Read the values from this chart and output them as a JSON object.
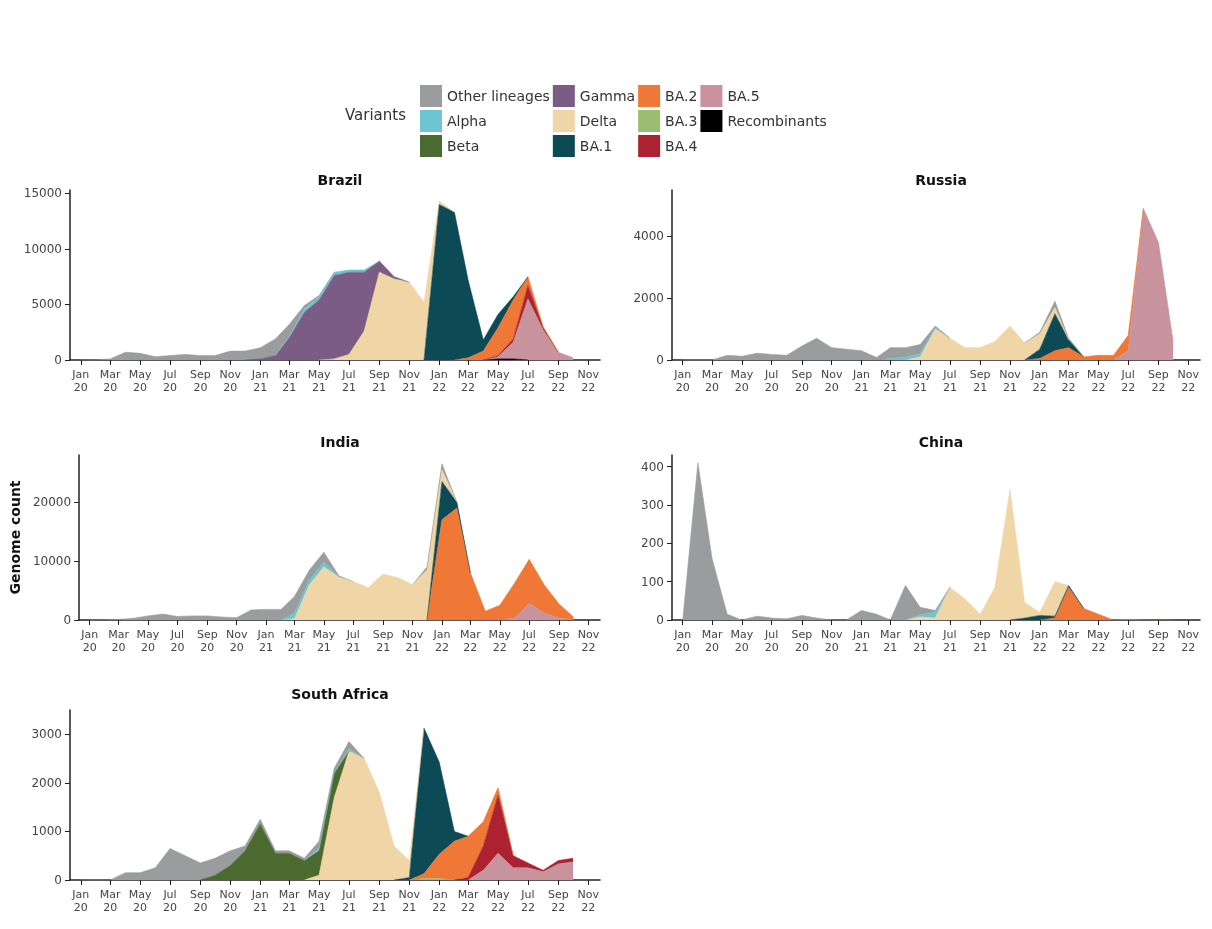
{
  "chart_data": [
    {
      "type": "area",
      "stacked": true,
      "title": "Brazil",
      "legend": "top",
      "legend_title": "Variants",
      "marker": "none",
      "grid": false,
      "x": [
        "2020-01",
        "2020-02",
        "2020-03",
        "2020-04",
        "2020-05",
        "2020-06",
        "2020-07",
        "2020-08",
        "2020-09",
        "2020-10",
        "2020-11",
        "2020-12",
        "2021-01",
        "2021-02",
        "2021-03",
        "2021-04",
        "2021-05",
        "2021-06",
        "2021-07",
        "2021-08",
        "2021-09",
        "2021-10",
        "2021-11",
        "2021-12",
        "2022-01",
        "2022-02",
        "2022-03",
        "2022-04",
        "2022-05",
        "2022-06",
        "2022-07",
        "2022-08",
        "2022-09",
        "2022-10"
      ],
      "xlim": [
        "2019-12-10",
        "2022-11-25"
      ],
      "xticks": [
        {
          "value": "2020-01",
          "label": "Jan 20"
        },
        {
          "value": "2020-03",
          "label": "Mar 20"
        },
        {
          "value": "2020-05",
          "label": "May 20"
        },
        {
          "value": "2020-07",
          "label": "Jul 20"
        },
        {
          "value": "2020-09",
          "label": "Sep 20"
        },
        {
          "value": "2020-11",
          "label": "Nov 20"
        },
        {
          "value": "2021-01",
          "label": "Jan 21"
        },
        {
          "value": "2021-03",
          "label": "Mar 21"
        },
        {
          "value": "2021-05",
          "label": "May 21"
        },
        {
          "value": "2021-07",
          "label": "Jul 21"
        },
        {
          "value": "2021-09",
          "label": "Sep 21"
        },
        {
          "value": "2021-11",
          "label": "Nov 21"
        },
        {
          "value": "2022-01",
          "label": "Jan 22"
        },
        {
          "value": "2022-03",
          "label": "Mar 22"
        },
        {
          "value": "2022-05",
          "label": "May 22"
        },
        {
          "value": "2022-07",
          "label": "Jul 22"
        },
        {
          "value": "2022-09",
          "label": "Sep 22"
        },
        {
          "value": "2022-11",
          "label": "Nov 22"
        }
      ],
      "ylim": [
        0,
        15300
      ],
      "yticks": [
        0,
        5000,
        10000,
        15000
      ],
      "series": [
        {
          "name": "Recombinants",
          "color": "#000000",
          "values": [
            null,
            null,
            null,
            null,
            null,
            null,
            null,
            null,
            null,
            null,
            null,
            null,
            null,
            null,
            null,
            null,
            null,
            null,
            null,
            null,
            null,
            null,
            null,
            null,
            null,
            null,
            null,
            0,
            100,
            100,
            0,
            null,
            null,
            null
          ]
        },
        {
          "name": "BA.5",
          "color": "#c8939d",
          "values": [
            null,
            null,
            null,
            null,
            null,
            null,
            null,
            null,
            null,
            null,
            null,
            null,
            null,
            null,
            null,
            null,
            null,
            null,
            null,
            null,
            null,
            null,
            null,
            null,
            null,
            null,
            null,
            0,
            200,
            1500,
            5500,
            2700,
            700,
            200
          ]
        },
        {
          "name": "BA.4",
          "color": "#ad2231",
          "values": [
            null,
            null,
            null,
            null,
            null,
            null,
            null,
            null,
            null,
            null,
            null,
            null,
            null,
            null,
            null,
            null,
            null,
            null,
            null,
            null,
            null,
            null,
            null,
            null,
            null,
            null,
            null,
            0,
            100,
            300,
            1200,
            200,
            0,
            null
          ]
        },
        {
          "name": "BA.3",
          "color": "#9bbd72",
          "values": [
            null,
            null,
            null,
            null,
            null,
            null,
            null,
            null,
            null,
            null,
            null,
            null,
            null,
            null,
            null,
            null,
            null,
            null,
            null,
            null,
            null,
            null,
            null,
            null,
            null,
            null,
            null,
            null,
            null,
            null,
            null,
            null,
            null,
            null
          ]
        },
        {
          "name": "BA.2",
          "color": "#ef7836",
          "values": [
            null,
            null,
            null,
            null,
            null,
            null,
            null,
            null,
            null,
            null,
            null,
            null,
            null,
            null,
            null,
            null,
            null,
            null,
            null,
            null,
            null,
            null,
            null,
            null,
            null,
            0,
            200,
            800,
            2500,
            3500,
            800,
            100,
            0,
            null
          ]
        },
        {
          "name": "BA.1",
          "color": "#0c4a55",
          "values": [
            null,
            null,
            null,
            null,
            null,
            null,
            null,
            null,
            null,
            null,
            null,
            null,
            null,
            null,
            null,
            null,
            null,
            null,
            null,
            null,
            null,
            null,
            null,
            0,
            14000,
            13300,
            7000,
            1000,
            1200,
            300,
            0,
            null,
            null,
            null
          ]
        },
        {
          "name": "Delta",
          "color": "#f0d6a6",
          "values": [
            null,
            null,
            null,
            null,
            null,
            null,
            null,
            null,
            null,
            null,
            null,
            null,
            null,
            null,
            null,
            null,
            0,
            100,
            500,
            2600,
            7900,
            7300,
            7000,
            5200,
            300,
            0,
            null,
            null,
            null,
            null,
            null,
            null,
            null,
            null
          ]
        },
        {
          "name": "Gamma",
          "color": "#7b5c85",
          "values": [
            null,
            null,
            null,
            null,
            null,
            null,
            null,
            null,
            null,
            null,
            null,
            0,
            100,
            400,
            2000,
            4300,
            5400,
            7500,
            7400,
            5300,
            1000,
            200,
            0,
            null,
            null,
            null,
            null,
            null,
            null,
            null,
            null,
            null,
            null,
            null
          ]
        },
        {
          "name": "Beta",
          "color": "#4a6a2f",
          "values": [
            null,
            null,
            null,
            null,
            null,
            null,
            null,
            null,
            null,
            null,
            null,
            null,
            null,
            null,
            null,
            null,
            null,
            null,
            null,
            null,
            null,
            null,
            null,
            null,
            null,
            null,
            null,
            null,
            null,
            null,
            null,
            null,
            null,
            null
          ]
        },
        {
          "name": "Alpha",
          "color": "#6cc5d1",
          "values": [
            null,
            null,
            null,
            null,
            null,
            null,
            null,
            null,
            null,
            null,
            null,
            null,
            null,
            0,
            100,
            300,
            300,
            300,
            200,
            200,
            0,
            null,
            null,
            null,
            null,
            null,
            null,
            null,
            null,
            null,
            null,
            null,
            null,
            null
          ]
        },
        {
          "name": "Other lineages",
          "color": "#9b9c9e",
          "values": [
            0,
            0,
            100,
            700,
            600,
            300,
            400,
            500,
            400,
            400,
            800,
            800,
            1000,
            1500,
            1100,
            300,
            100,
            0,
            null,
            null,
            null,
            null,
            null,
            null,
            null,
            null,
            null,
            null,
            null,
            null,
            null,
            null,
            null,
            null
          ]
        }
      ]
    },
    {
      "type": "area",
      "stacked": true,
      "title": "Russia",
      "legend": false,
      "marker": "none",
      "grid": false,
      "x": [
        "2020-01",
        "2020-02",
        "2020-03",
        "2020-04",
        "2020-05",
        "2020-06",
        "2020-07",
        "2020-08",
        "2020-09",
        "2020-10",
        "2020-11",
        "2020-12",
        "2021-01",
        "2021-02",
        "2021-03",
        "2021-04",
        "2021-05",
        "2021-06",
        "2021-07",
        "2021-08",
        "2021-09",
        "2021-10",
        "2021-11",
        "2021-12",
        "2022-01",
        "2022-02",
        "2022-03",
        "2022-04",
        "2022-05",
        "2022-06",
        "2022-07",
        "2022-08",
        "2022-09",
        "2022-10"
      ],
      "xlim": [
        "2019-12-10",
        "2022-11-25"
      ],
      "xticks": [
        {
          "value": "2020-01",
          "label": "Jan 20"
        },
        {
          "value": "2020-03",
          "label": "Mar 20"
        },
        {
          "value": "2020-05",
          "label": "May 20"
        },
        {
          "value": "2020-07",
          "label": "Jul 20"
        },
        {
          "value": "2020-09",
          "label": "Sep 20"
        },
        {
          "value": "2020-11",
          "label": "Nov 20"
        },
        {
          "value": "2021-01",
          "label": "Jan 21"
        },
        {
          "value": "2021-03",
          "label": "Mar 21"
        },
        {
          "value": "2021-05",
          "label": "May 21"
        },
        {
          "value": "2021-07",
          "label": "Jul 21"
        },
        {
          "value": "2021-09",
          "label": "Sep 21"
        },
        {
          "value": "2021-11",
          "label": "Nov 21"
        },
        {
          "value": "2022-01",
          "label": "Jan 22"
        },
        {
          "value": "2022-03",
          "label": "Mar 22"
        },
        {
          "value": "2022-05",
          "label": "May 22"
        },
        {
          "value": "2022-07",
          "label": "Jul 22"
        },
        {
          "value": "2022-09",
          "label": "Sep 22"
        },
        {
          "value": "2022-11",
          "label": "Nov 22"
        }
      ],
      "ylim": [
        0,
        5500
      ],
      "yticks": [
        0,
        2000,
        4000
      ],
      "series": [
        {
          "color": "#c8939d",
          "values": [
            null,
            null,
            null,
            null,
            null,
            null,
            null,
            null,
            null,
            null,
            null,
            null,
            null,
            null,
            null,
            null,
            null,
            null,
            null,
            null,
            null,
            null,
            null,
            null,
            null,
            null,
            null,
            null,
            null,
            0,
            300,
            4900,
            3800,
            600
          ]
        },
        {
          "color": "#ef7836",
          "values": [
            null,
            null,
            null,
            null,
            null,
            null,
            null,
            null,
            null,
            null,
            null,
            null,
            null,
            null,
            null,
            null,
            null,
            null,
            null,
            null,
            null,
            null,
            null,
            0,
            50,
            300,
            400,
            100,
            150,
            150,
            500,
            0,
            null,
            null
          ]
        },
        {
          "color": "#0c4a55",
          "values": [
            null,
            null,
            null,
            null,
            null,
            null,
            null,
            null,
            null,
            null,
            null,
            null,
            null,
            null,
            null,
            null,
            null,
            null,
            null,
            null,
            null,
            null,
            null,
            0,
            300,
            1200,
            250,
            0,
            null,
            null,
            null,
            null,
            null,
            null
          ]
        },
        {
          "color": "#f0d6a6",
          "values": [
            null,
            null,
            null,
            null,
            null,
            null,
            null,
            null,
            null,
            null,
            null,
            null,
            null,
            null,
            null,
            0,
            100,
            1000,
            700,
            400,
            400,
            600,
            1100,
            550,
            500,
            200,
            0,
            null,
            null,
            null,
            null,
            null,
            null,
            null
          ]
        },
        {
          "color": "#6cc5d1",
          "values": [
            null,
            null,
            null,
            null,
            null,
            null,
            null,
            null,
            null,
            null,
            null,
            null,
            null,
            0,
            50,
            100,
            100,
            50,
            0,
            null,
            null,
            null,
            null,
            null,
            null,
            null,
            null,
            null,
            null,
            null,
            null,
            null,
            null,
            null
          ]
        },
        {
          "color": "#9b9c9e",
          "values": [
            0,
            0,
            0,
            150,
            120,
            220,
            180,
            150,
            450,
            700,
            400,
            350,
            300,
            80,
            350,
            300,
            300,
            50,
            0,
            null,
            null,
            null,
            null,
            0,
            50,
            200,
            50,
            0,
            null,
            null,
            null,
            null,
            null,
            null
          ]
        }
      ]
    },
    {
      "type": "area",
      "stacked": true,
      "title": "India",
      "ylabel": "Genome count",
      "legend": false,
      "marker": "none",
      "grid": false,
      "x": [
        "2020-01",
        "2020-02",
        "2020-03",
        "2020-04",
        "2020-05",
        "2020-06",
        "2020-07",
        "2020-08",
        "2020-09",
        "2020-10",
        "2020-11",
        "2020-12",
        "2021-01",
        "2021-02",
        "2021-03",
        "2021-04",
        "2021-05",
        "2021-06",
        "2021-07",
        "2021-08",
        "2021-09",
        "2021-10",
        "2021-11",
        "2021-12",
        "2022-01",
        "2022-02",
        "2022-03",
        "2022-04",
        "2022-05",
        "2022-06",
        "2022-07",
        "2022-08",
        "2022-09",
        "2022-10"
      ],
      "xlim": [
        "2019-12-10",
        "2022-11-25"
      ],
      "xticks": [
        {
          "value": "2020-01",
          "label": "Jan 20"
        },
        {
          "value": "2020-03",
          "label": "Mar 20"
        },
        {
          "value": "2020-05",
          "label": "May 20"
        },
        {
          "value": "2020-07",
          "label": "Jul 20"
        },
        {
          "value": "2020-09",
          "label": "Sep 20"
        },
        {
          "value": "2020-11",
          "label": "Nov 20"
        },
        {
          "value": "2021-01",
          "label": "Jan 21"
        },
        {
          "value": "2021-03",
          "label": "Mar 21"
        },
        {
          "value": "2021-05",
          "label": "May 21"
        },
        {
          "value": "2021-07",
          "label": "Jul 21"
        },
        {
          "value": "2021-09",
          "label": "Sep 21"
        },
        {
          "value": "2021-11",
          "label": "Nov 21"
        },
        {
          "value": "2022-01",
          "label": "Jan 22"
        },
        {
          "value": "2022-03",
          "label": "Mar 22"
        },
        {
          "value": "2022-05",
          "label": "May 22"
        },
        {
          "value": "2022-07",
          "label": "Jul 22"
        },
        {
          "value": "2022-09",
          "label": "Sep 22"
        },
        {
          "value": "2022-11",
          "label": "Nov 22"
        }
      ],
      "ylim": [
        0,
        28000
      ],
      "yticks": [
        0,
        10000,
        20000
      ],
      "series": [
        {
          "color": "#c8939d",
          "values": [
            null,
            null,
            null,
            null,
            null,
            null,
            null,
            null,
            null,
            null,
            null,
            null,
            null,
            null,
            null,
            null,
            null,
            null,
            null,
            null,
            null,
            null,
            null,
            null,
            null,
            null,
            null,
            null,
            0,
            300,
            2800,
            1200,
            300,
            0
          ]
        },
        {
          "color": "#ef7836",
          "values": [
            null,
            null,
            null,
            null,
            null,
            null,
            null,
            null,
            null,
            null,
            null,
            null,
            null,
            null,
            null,
            null,
            null,
            null,
            null,
            null,
            null,
            null,
            null,
            0,
            17000,
            19000,
            8000,
            1500,
            2500,
            6000,
            7500,
            4800,
            2400,
            500
          ]
        },
        {
          "color": "#0c4a55",
          "values": [
            null,
            null,
            null,
            null,
            null,
            null,
            null,
            null,
            null,
            null,
            null,
            null,
            null,
            null,
            null,
            null,
            null,
            null,
            null,
            null,
            null,
            null,
            null,
            0,
            6500,
            1000,
            0,
            null,
            null,
            null,
            null,
            null,
            null,
            null
          ]
        },
        {
          "color": "#f0d6a6",
          "values": [
            null,
            null,
            null,
            null,
            null,
            null,
            null,
            null,
            null,
            null,
            null,
            null,
            null,
            0,
            200,
            6000,
            9000,
            7300,
            6500,
            5500,
            7800,
            7200,
            6000,
            8500,
            2000,
            0,
            null,
            null,
            null,
            null,
            null,
            null,
            null,
            null
          ]
        },
        {
          "color": "#6cc5d1",
          "values": [
            null,
            null,
            null,
            null,
            null,
            null,
            null,
            null,
            null,
            null,
            null,
            null,
            null,
            0,
            1000,
            800,
            800,
            0,
            null,
            null,
            null,
            null,
            null,
            null,
            null,
            null,
            null,
            null,
            null,
            null,
            null,
            null,
            null,
            null
          ]
        },
        {
          "color": "#9b9c9e",
          "values": [
            0,
            0,
            100,
            300,
            700,
            1000,
            600,
            700,
            700,
            500,
            400,
            1700,
            1800,
            1800,
            2800,
            1700,
            1700,
            200,
            0,
            null,
            null,
            null,
            0,
            500,
            1000,
            0,
            null,
            null,
            null,
            null,
            null,
            null,
            null,
            null
          ]
        }
      ]
    },
    {
      "type": "area",
      "stacked": true,
      "title": "China",
      "legend": false,
      "marker": "none",
      "grid": false,
      "x": [
        "2020-01",
        "2020-02",
        "2020-03",
        "2020-04",
        "2020-05",
        "2020-06",
        "2020-07",
        "2020-08",
        "2020-09",
        "2020-10",
        "2020-11",
        "2020-12",
        "2021-01",
        "2021-02",
        "2021-03",
        "2021-04",
        "2021-05",
        "2021-06",
        "2021-07",
        "2021-08",
        "2021-09",
        "2021-10",
        "2021-11",
        "2021-12",
        "2022-01",
        "2022-02",
        "2022-03",
        "2022-04",
        "2022-05",
        "2022-06",
        "2022-07",
        "2022-08",
        "2022-09",
        "2022-10"
      ],
      "xlim": [
        "2019-12-10",
        "2022-11-25"
      ],
      "xticks": [
        {
          "value": "2020-01",
          "label": "Jan 20"
        },
        {
          "value": "2020-03",
          "label": "Mar 20"
        },
        {
          "value": "2020-05",
          "label": "May 20"
        },
        {
          "value": "2020-07",
          "label": "Jul 20"
        },
        {
          "value": "2020-09",
          "label": "Sep 20"
        },
        {
          "value": "2020-11",
          "label": "Nov 20"
        },
        {
          "value": "2021-01",
          "label": "Jan 21"
        },
        {
          "value": "2021-03",
          "label": "Mar 21"
        },
        {
          "value": "2021-05",
          "label": "May 21"
        },
        {
          "value": "2021-07",
          "label": "Jul 21"
        },
        {
          "value": "2021-09",
          "label": "Sep 21"
        },
        {
          "value": "2021-11",
          "label": "Nov 21"
        },
        {
          "value": "2022-01",
          "label": "Jan 22"
        },
        {
          "value": "2022-03",
          "label": "Mar 22"
        },
        {
          "value": "2022-05",
          "label": "May 22"
        },
        {
          "value": "2022-07",
          "label": "Jul 22"
        },
        {
          "value": "2022-09",
          "label": "Sep 22"
        },
        {
          "value": "2022-11",
          "label": "Nov 22"
        }
      ],
      "ylim": [
        0,
        430
      ],
      "yticks": [
        0,
        100,
        200,
        300,
        400
      ],
      "series": [
        {
          "color": "#ef7836",
          "values": [
            null,
            null,
            null,
            null,
            null,
            null,
            null,
            null,
            null,
            null,
            null,
            null,
            null,
            null,
            null,
            null,
            null,
            null,
            null,
            null,
            null,
            null,
            null,
            null,
            0,
            5,
            85,
            30,
            15,
            0,
            2,
            0,
            0,
            0
          ]
        },
        {
          "color": "#0c4a55",
          "values": [
            null,
            null,
            null,
            null,
            null,
            null,
            null,
            null,
            null,
            null,
            null,
            null,
            null,
            null,
            null,
            null,
            null,
            null,
            null,
            null,
            null,
            null,
            0,
            5,
            12,
            5,
            5,
            0,
            null,
            null,
            null,
            null,
            null,
            null
          ]
        },
        {
          "color": "#f0d6a6",
          "values": [
            null,
            null,
            null,
            null,
            null,
            null,
            null,
            null,
            null,
            null,
            null,
            null,
            null,
            null,
            null,
            0,
            8,
            5,
            85,
            55,
            15,
            85,
            340,
            40,
            8,
            90,
            0,
            null,
            null,
            null,
            null,
            null,
            null,
            null
          ]
        },
        {
          "color": "#6cc5d1",
          "values": [
            null,
            null,
            null,
            null,
            null,
            null,
            null,
            null,
            null,
            null,
            null,
            null,
            null,
            null,
            null,
            0,
            5,
            15,
            0,
            null,
            null,
            null,
            null,
            null,
            null,
            null,
            null,
            null,
            null,
            null,
            null,
            null,
            null,
            null
          ]
        },
        {
          "color": "#9b9c9e",
          "values": [
            0,
            410,
            160,
            15,
            0,
            10,
            5,
            3,
            12,
            5,
            0,
            0,
            25,
            15,
            0,
            90,
            20,
            5,
            0,
            null,
            null,
            null,
            null,
            null,
            null,
            null,
            null,
            null,
            null,
            null,
            null,
            null,
            null,
            null
          ]
        }
      ]
    },
    {
      "type": "area",
      "stacked": true,
      "title": "South Africa",
      "legend": false,
      "marker": "none",
      "grid": false,
      "x": [
        "2020-01",
        "2020-02",
        "2020-03",
        "2020-04",
        "2020-05",
        "2020-06",
        "2020-07",
        "2020-08",
        "2020-09",
        "2020-10",
        "2020-11",
        "2020-12",
        "2021-01",
        "2021-02",
        "2021-03",
        "2021-04",
        "2021-05",
        "2021-06",
        "2021-07",
        "2021-08",
        "2021-09",
        "2021-10",
        "2021-11",
        "2021-12",
        "2022-01",
        "2022-02",
        "2022-03",
        "2022-04",
        "2022-05",
        "2022-06",
        "2022-07",
        "2022-08",
        "2022-09",
        "2022-10"
      ],
      "xlim": [
        "2019-12-10",
        "2022-11-25"
      ],
      "xticks": [
        {
          "value": "2020-01",
          "label": "Jan 20"
        },
        {
          "value": "2020-03",
          "label": "Mar 20"
        },
        {
          "value": "2020-05",
          "label": "May 20"
        },
        {
          "value": "2020-07",
          "label": "Jul 20"
        },
        {
          "value": "2020-09",
          "label": "Sep 20"
        },
        {
          "value": "2020-11",
          "label": "Nov 20"
        },
        {
          "value": "2021-01",
          "label": "Jan 21"
        },
        {
          "value": "2021-03",
          "label": "Mar 21"
        },
        {
          "value": "2021-05",
          "label": "May 21"
        },
        {
          "value": "2021-07",
          "label": "Jul 21"
        },
        {
          "value": "2021-09",
          "label": "Sep 21"
        },
        {
          "value": "2021-11",
          "label": "Nov 21"
        },
        {
          "value": "2022-01",
          "label": "Jan 22"
        },
        {
          "value": "2022-03",
          "label": "Mar 22"
        },
        {
          "value": "2022-05",
          "label": "May 22"
        },
        {
          "value": "2022-07",
          "label": "Jul 22"
        },
        {
          "value": "2022-09",
          "label": "Sep 22"
        },
        {
          "value": "2022-11",
          "label": "Nov 22"
        }
      ],
      "ylim": [
        0,
        3500
      ],
      "yticks": [
        0,
        1000,
        2000,
        3000
      ],
      "series": [
        {
          "color": "#c8939d",
          "values": [
            null,
            null,
            null,
            null,
            null,
            null,
            null,
            null,
            null,
            null,
            null,
            null,
            null,
            null,
            null,
            null,
            null,
            null,
            null,
            null,
            null,
            null,
            null,
            null,
            null,
            null,
            0,
            200,
            550,
            250,
            250,
            170,
            330,
            370
          ]
        },
        {
          "color": "#ad2231",
          "values": [
            null,
            null,
            null,
            null,
            null,
            null,
            null,
            null,
            null,
            null,
            null,
            null,
            null,
            null,
            null,
            null,
            null,
            null,
            null,
            null,
            null,
            null,
            null,
            null,
            null,
            0,
            50,
            500,
            1200,
            250,
            100,
            30,
            70,
            80
          ]
        },
        {
          "color": "#9bbd72",
          "values": [
            null,
            null,
            null,
            null,
            null,
            null,
            null,
            null,
            null,
            null,
            null,
            null,
            null,
            null,
            null,
            null,
            null,
            null,
            null,
            null,
            null,
            null,
            0,
            30,
            30,
            0,
            null,
            null,
            null,
            null,
            null,
            null,
            null,
            null
          ]
        },
        {
          "color": "#ef7836",
          "values": [
            null,
            null,
            null,
            null,
            null,
            null,
            null,
            null,
            null,
            null,
            null,
            null,
            null,
            null,
            null,
            null,
            null,
            null,
            null,
            null,
            null,
            null,
            0,
            100,
            500,
            800,
            850,
            500,
            150,
            0,
            null,
            null,
            null,
            null
          ]
        },
        {
          "color": "#0c4a55",
          "values": [
            null,
            null,
            null,
            null,
            null,
            null,
            null,
            null,
            null,
            null,
            null,
            null,
            null,
            null,
            null,
            null,
            null,
            null,
            null,
            null,
            null,
            0,
            50,
            3000,
            1900,
            200,
            0,
            null,
            null,
            null,
            null,
            null,
            null,
            null
          ]
        },
        {
          "color": "#f0d6a6",
          "values": [
            null,
            null,
            null,
            null,
            null,
            null,
            null,
            null,
            null,
            null,
            null,
            null,
            null,
            null,
            null,
            0,
            100,
            1700,
            2650,
            2500,
            1800,
            700,
            350,
            0,
            null,
            null,
            null,
            null,
            null,
            null,
            null,
            null,
            null,
            null
          ]
        },
        {
          "color": "#4a6a2f",
          "values": [
            null,
            null,
            null,
            null,
            null,
            null,
            null,
            null,
            0,
            100,
            300,
            600,
            1150,
            550,
            550,
            400,
            500,
            500,
            0,
            null,
            null,
            null,
            null,
            null,
            null,
            null,
            null,
            null,
            null,
            null,
            null,
            null,
            null,
            null
          ]
        },
        {
          "color": "#6cc5d1",
          "values": [
            null,
            null,
            null,
            null,
            null,
            null,
            null,
            null,
            null,
            null,
            null,
            null,
            null,
            null,
            null,
            0,
            50,
            0,
            50,
            0,
            null,
            null,
            null,
            null,
            null,
            null,
            null,
            null,
            null,
            null,
            null,
            null,
            null,
            null
          ]
        },
        {
          "color": "#9b9c9e",
          "values": [
            0,
            0,
            0,
            150,
            150,
            250,
            650,
            500,
            350,
            350,
            300,
            100,
            100,
            50,
            50,
            50,
            150,
            100,
            150,
            0,
            null,
            null,
            null,
            null,
            null,
            null,
            null,
            null,
            null,
            null,
            null,
            null,
            null,
            null
          ]
        }
      ]
    }
  ]
}
